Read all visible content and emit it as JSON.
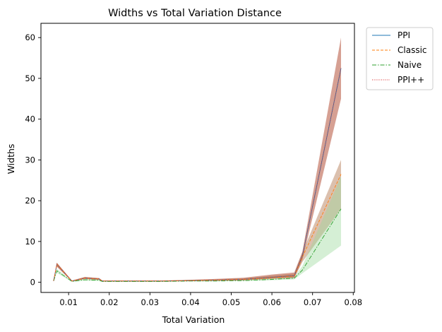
{
  "chart_data": {
    "type": "line",
    "title": "Widths vs Total Variation Distance",
    "xlabel": "Total Variation",
    "ylabel": "Widths",
    "xlim": [
      0.0032,
      0.0803
    ],
    "ylim": [
      -2.5,
      63.5
    ],
    "x_ticks": [
      0.01,
      0.02,
      0.03,
      0.04,
      0.05,
      0.06,
      0.07,
      0.08
    ],
    "x_tick_labels": [
      "0.01",
      "0.02",
      "0.03",
      "0.04",
      "0.05",
      "0.06",
      "0.07",
      "0.08"
    ],
    "y_ticks": [
      0,
      10,
      20,
      30,
      40,
      50,
      60
    ],
    "y_tick_labels": [
      "0",
      "10",
      "20",
      "30",
      "40",
      "50",
      "60"
    ],
    "grid": false,
    "legend_position": "outside-top-right",
    "x": [
      0.0063,
      0.0071,
      0.0108,
      0.014,
      0.0175,
      0.0183,
      0.025,
      0.033,
      0.04,
      0.046,
      0.053,
      0.06,
      0.0655,
      0.0675,
      0.077
    ],
    "series": [
      {
        "name": "PPI",
        "color": "#1f77b4",
        "style": "solid",
        "values": [
          0.3,
          4.4,
          0.3,
          1.0,
          0.8,
          0.3,
          0.3,
          0.3,
          0.4,
          0.5,
          0.7,
          1.2,
          1.6,
          6.5,
          52.5
        ],
        "band_lower": [
          0.3,
          3.9,
          0.2,
          0.8,
          0.6,
          0.2,
          0.2,
          0.2,
          0.3,
          0.4,
          0.5,
          0.9,
          1.1,
          5.5,
          45.0
        ],
        "band_upper": [
          0.4,
          4.8,
          0.4,
          1.3,
          1.0,
          0.4,
          0.4,
          0.4,
          0.6,
          0.8,
          1.1,
          1.9,
          2.4,
          7.5,
          60.0
        ],
        "band_color": "#c0705e"
      },
      {
        "name": "Classic",
        "color": "#ff7f0e",
        "style": "dashed",
        "values": [
          0.3,
          4.4,
          0.3,
          1.0,
          0.8,
          0.3,
          0.3,
          0.3,
          0.4,
          0.5,
          0.7,
          1.1,
          1.5,
          6.2,
          26.5
        ],
        "band_lower": [
          0.3,
          3.8,
          0.2,
          0.8,
          0.6,
          0.2,
          0.2,
          0.2,
          0.3,
          0.4,
          0.5,
          0.8,
          1.0,
          5.0,
          18.0
        ],
        "band_upper": [
          0.4,
          4.8,
          0.4,
          1.3,
          1.0,
          0.4,
          0.4,
          0.4,
          0.6,
          0.7,
          1.0,
          1.6,
          2.1,
          7.3,
          30.0
        ],
        "band_color": "#a96a3e"
      },
      {
        "name": "Naive",
        "color": "#2ca02c",
        "style": "dashdot",
        "values": [
          0.3,
          2.8,
          0.2,
          0.6,
          0.5,
          0.2,
          0.2,
          0.2,
          0.3,
          0.3,
          0.4,
          0.7,
          1.0,
          3.0,
          18.0
        ],
        "band_lower": [
          0.2,
          2.3,
          0.1,
          0.4,
          0.3,
          0.1,
          0.1,
          0.1,
          0.2,
          0.2,
          0.3,
          0.5,
          0.7,
          2.2,
          9.0
        ],
        "band_upper": [
          0.4,
          3.3,
          0.3,
          0.8,
          0.7,
          0.3,
          0.3,
          0.3,
          0.4,
          0.5,
          0.6,
          1.0,
          1.3,
          4.0,
          26.0
        ],
        "band_color": "#9ad89a"
      },
      {
        "name": "PPI++",
        "color": "#d62728",
        "style": "dotted",
        "values": [
          0.3,
          4.4,
          0.3,
          1.0,
          0.8,
          0.3,
          0.3,
          0.3,
          0.4,
          0.5,
          0.7,
          1.2,
          1.6,
          6.5,
          52.5
        ],
        "band_lower": [
          0.3,
          3.9,
          0.2,
          0.8,
          0.6,
          0.2,
          0.2,
          0.2,
          0.3,
          0.4,
          0.5,
          0.9,
          1.1,
          5.5,
          45.0
        ],
        "band_upper": [
          0.4,
          4.8,
          0.4,
          1.3,
          1.0,
          0.4,
          0.4,
          0.4,
          0.6,
          0.8,
          1.1,
          1.9,
          2.4,
          7.5,
          60.0
        ],
        "band_color": "#c0705e"
      }
    ]
  }
}
